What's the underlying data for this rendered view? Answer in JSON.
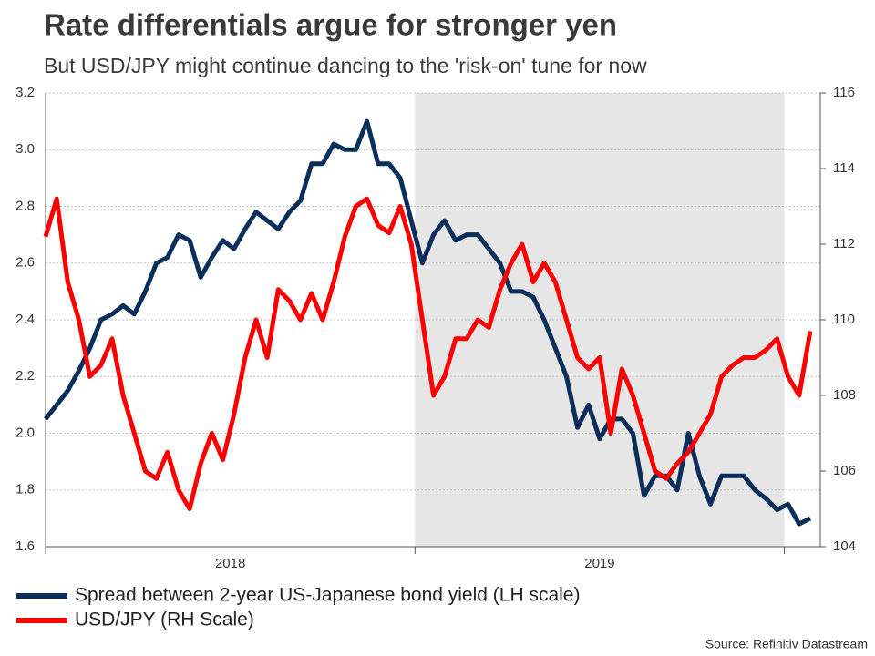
{
  "chart_data": {
    "type": "line",
    "title": "Rate differentials argue for stronger yen",
    "subtitle": "But USD/JPY might continue dancing to the 'risk-on' tune for now",
    "source": "Source: Refinitiv Datastream",
    "x": [
      2018,
      2018.03,
      2018.06,
      2018.09,
      2018.12,
      2018.15,
      2018.18,
      2018.21,
      2018.24,
      2018.27,
      2018.3,
      2018.33,
      2018.36,
      2018.39,
      2018.42,
      2018.45,
      2018.48,
      2018.51,
      2018.54,
      2018.57,
      2018.6,
      2018.63,
      2018.66,
      2018.69,
      2018.72,
      2018.75,
      2018.78,
      2018.81,
      2018.84,
      2018.87,
      2018.9,
      2018.93,
      2018.96,
      2018.99,
      2019.02,
      2019.05,
      2019.08,
      2019.11,
      2019.14,
      2019.17,
      2019.2,
      2019.23,
      2019.26,
      2019.29,
      2019.32,
      2019.35,
      2019.38,
      2019.41,
      2019.44,
      2019.47,
      2019.5,
      2019.53,
      2019.56,
      2019.59,
      2019.62,
      2019.65,
      2019.68,
      2019.71,
      2019.74,
      2019.77,
      2019.8,
      2019.83,
      2019.86,
      2019.89,
      2019.92,
      2019.95,
      2019.98,
      2020.01,
      2020.04,
      2020.07
    ],
    "xlim": [
      2018,
      2020.08
    ],
    "x_boundaries": [
      2018,
      2019,
      2020
    ],
    "x_period_labels": [
      "2018",
      "2019"
    ],
    "shaded_span": [
      2019,
      2020
    ],
    "shade_color": "#e6e6e6",
    "series": [
      {
        "name": "Spread between 2-year US-Japanese bond yield (LH scale)",
        "color": "#0b2e5a",
        "values": [
          2.05,
          2.1,
          2.15,
          2.22,
          2.3,
          2.4,
          2.42,
          2.45,
          2.42,
          2.5,
          2.6,
          2.62,
          2.7,
          2.68,
          2.55,
          2.62,
          2.68,
          2.65,
          2.72,
          2.78,
          2.75,
          2.72,
          2.78,
          2.82,
          2.95,
          2.95,
          3.02,
          3.0,
          3.0,
          3.1,
          2.95,
          2.95,
          2.9,
          2.75,
          2.6,
          2.7,
          2.75,
          2.68,
          2.7,
          2.7,
          2.65,
          2.6,
          2.5,
          2.5,
          2.48,
          2.4,
          2.3,
          2.2,
          2.02,
          2.1,
          1.98,
          2.05,
          2.05,
          2.0,
          1.78,
          1.85,
          1.85,
          1.8,
          2.0,
          1.85,
          1.75,
          1.85,
          1.85,
          1.85,
          1.8,
          1.77,
          1.73,
          1.75,
          1.68,
          1.7
        ]
      },
      {
        "name": "USD/JPY (RH Scale)",
        "color": "#ff0000",
        "axis": "y2",
        "values": [
          112.2,
          113.2,
          111,
          110,
          108.5,
          108.8,
          109.5,
          108,
          107,
          106,
          105.8,
          106.5,
          105.5,
          105,
          106.2,
          107,
          106.3,
          107.5,
          109,
          110,
          109,
          110.8,
          110.5,
          110,
          110.7,
          110,
          111,
          112.2,
          113,
          113.2,
          112.5,
          112.3,
          113,
          112,
          110,
          108,
          108.5,
          109.5,
          109.5,
          110,
          109.8,
          110.8,
          111.5,
          112,
          111,
          111.5,
          111,
          110,
          109,
          108.7,
          109,
          107,
          108.7,
          108,
          107,
          106,
          105.8,
          106.2,
          106.5,
          107,
          107.5,
          108.5,
          108.8,
          109,
          109,
          109.2,
          109.5,
          108.5,
          108,
          109.7
        ]
      }
    ],
    "ylim": [
      1.6,
      3.2
    ],
    "yticks": [
      1.6,
      1.8,
      {
        "value": 2,
        "label": "2.0"
      },
      2.2,
      2.4,
      2.6,
      2.8,
      {
        "value": 3,
        "label": "3.0"
      },
      3.2
    ],
    "y2lim": [
      104,
      116
    ],
    "y2ticks": [
      104,
      106,
      108,
      110,
      112,
      114,
      116
    ],
    "grid": true
  }
}
